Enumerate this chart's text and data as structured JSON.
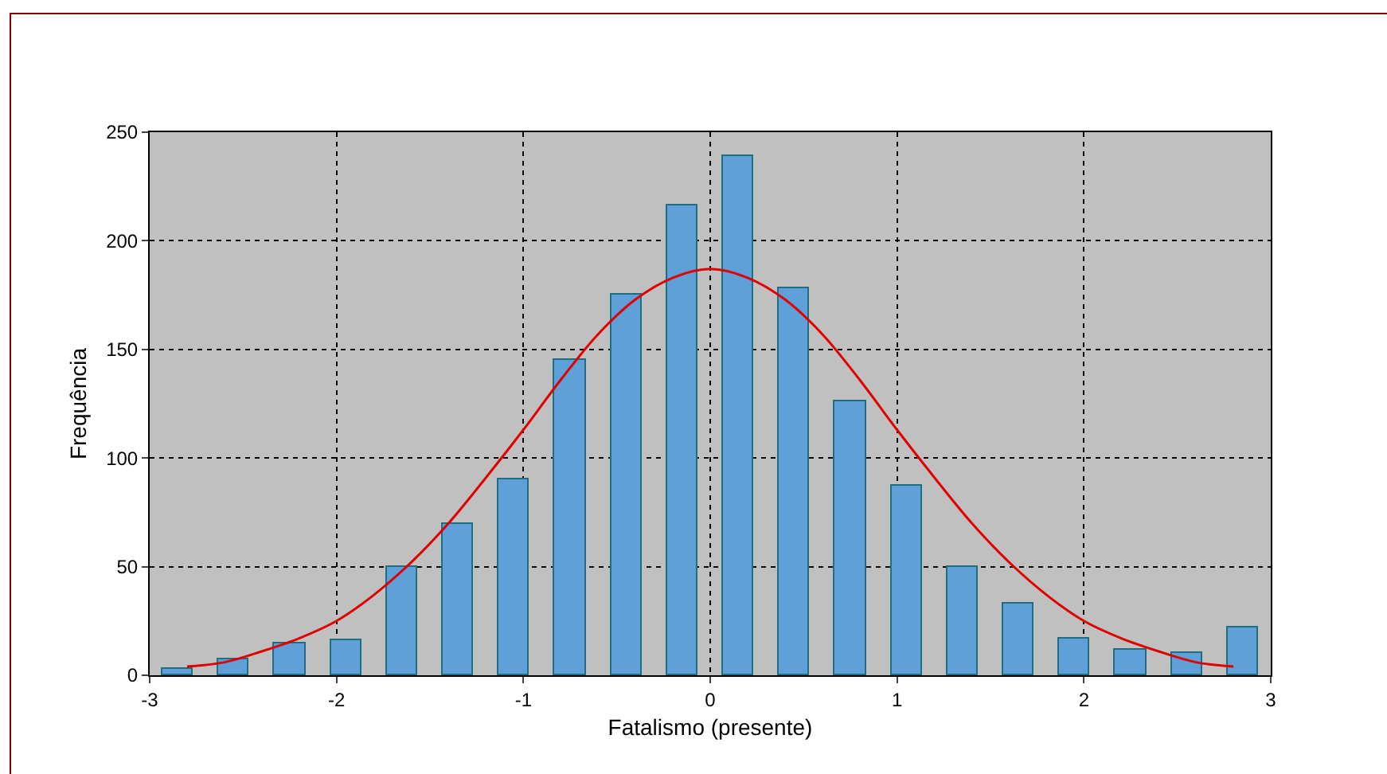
{
  "chart_data": {
    "type": "histogram",
    "xlabel": "Fatalismo (presente)",
    "ylabel": "Frequência",
    "bins": [
      -3,
      -2.7,
      -2.4,
      -2.1,
      -1.8,
      -1.5,
      -1.2,
      -0.9,
      -0.6,
      -0.3,
      0,
      0.3,
      0.6,
      0.9,
      1.2,
      1.5,
      1.8,
      2.1,
      2.4,
      2.7,
      3
    ],
    "values": [
      3,
      7,
      15,
      16,
      50,
      70,
      90,
      145,
      175,
      216,
      239,
      178,
      126,
      87,
      50,
      33,
      17,
      12,
      10,
      22
    ],
    "color": "#5fa0d8",
    "series": [
      {
        "type": "line",
        "color": "#e00000",
        "x": [
          -2.8,
          -2.6,
          -2.4,
          -2.2,
          -2,
          -1.8,
          -1.6,
          -1.4,
          -1.2,
          -1,
          -0.8,
          -0.6,
          -0.4,
          -0.2,
          0,
          0.2,
          0.4,
          0.6,
          0.8,
          1,
          1.2,
          1.4,
          1.6,
          1.8,
          2,
          2.2,
          2.4,
          2.6,
          2.8
        ],
        "values": [
          4,
          6,
          11,
          17,
          25,
          37,
          52,
          70,
          91,
          113,
          136,
          157,
          173,
          183,
          187,
          183,
          173,
          157,
          136,
          113,
          91,
          70,
          52,
          37,
          25,
          17,
          11,
          6,
          4
        ]
      }
    ],
    "xlim": [
      -3,
      3
    ],
    "xticks": [
      -3,
      -2,
      -1,
      0,
      1,
      2,
      3
    ],
    "ylim": [
      0,
      250
    ],
    "yticks": [
      0,
      50,
      100,
      150,
      200,
      250
    ],
    "grid": true,
    "marker": "none",
    "line_style": "solid"
  }
}
